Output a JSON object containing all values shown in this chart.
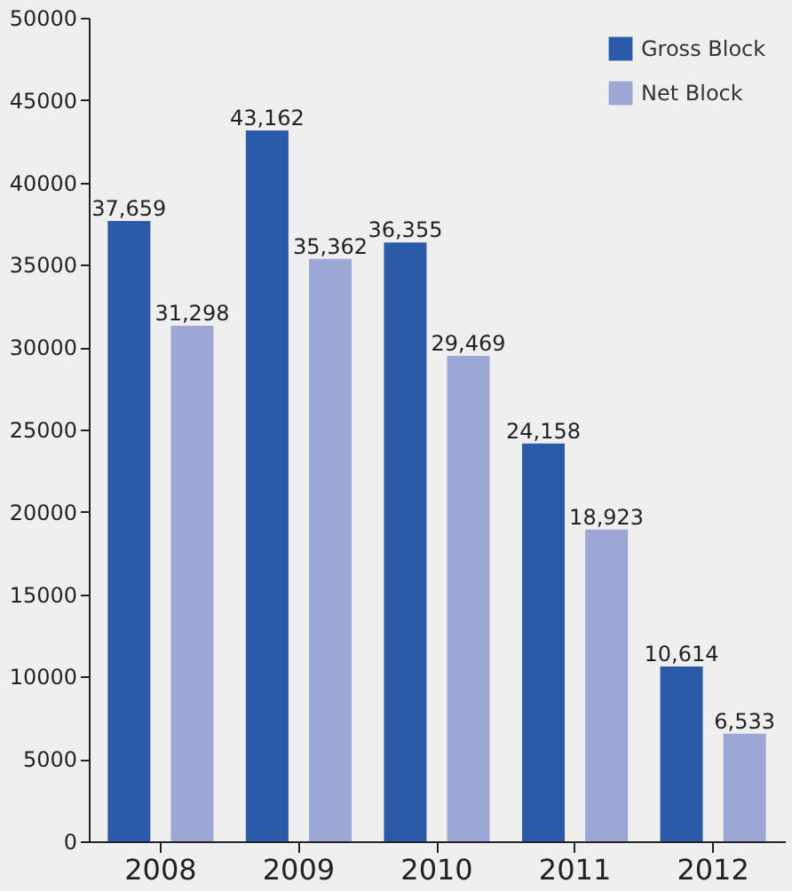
{
  "chart_data": {
    "type": "bar",
    "categories": [
      "2008",
      "2009",
      "2010",
      "2011",
      "2012"
    ],
    "series": [
      {
        "name": "Gross Block",
        "color": "#2b5ba8",
        "values": [
          37659,
          43162,
          36355,
          24158,
          10614
        ],
        "value_labels": [
          "37,659",
          "43,162",
          "36,355",
          "24,158",
          "10,614"
        ]
      },
      {
        "name": "Net Block",
        "color": "#9ca7d6",
        "values": [
          31298,
          35362,
          29469,
          18923,
          6533
        ],
        "value_labels": [
          "31,298",
          "35,362",
          "29,469",
          "18,923",
          "6,533"
        ]
      }
    ],
    "ylim": [
      0,
      50000
    ],
    "yticks": [
      0,
      5000,
      10000,
      15000,
      20000,
      25000,
      30000,
      35000,
      40000,
      45000,
      50000
    ],
    "grid": false,
    "legend": "top right"
  }
}
